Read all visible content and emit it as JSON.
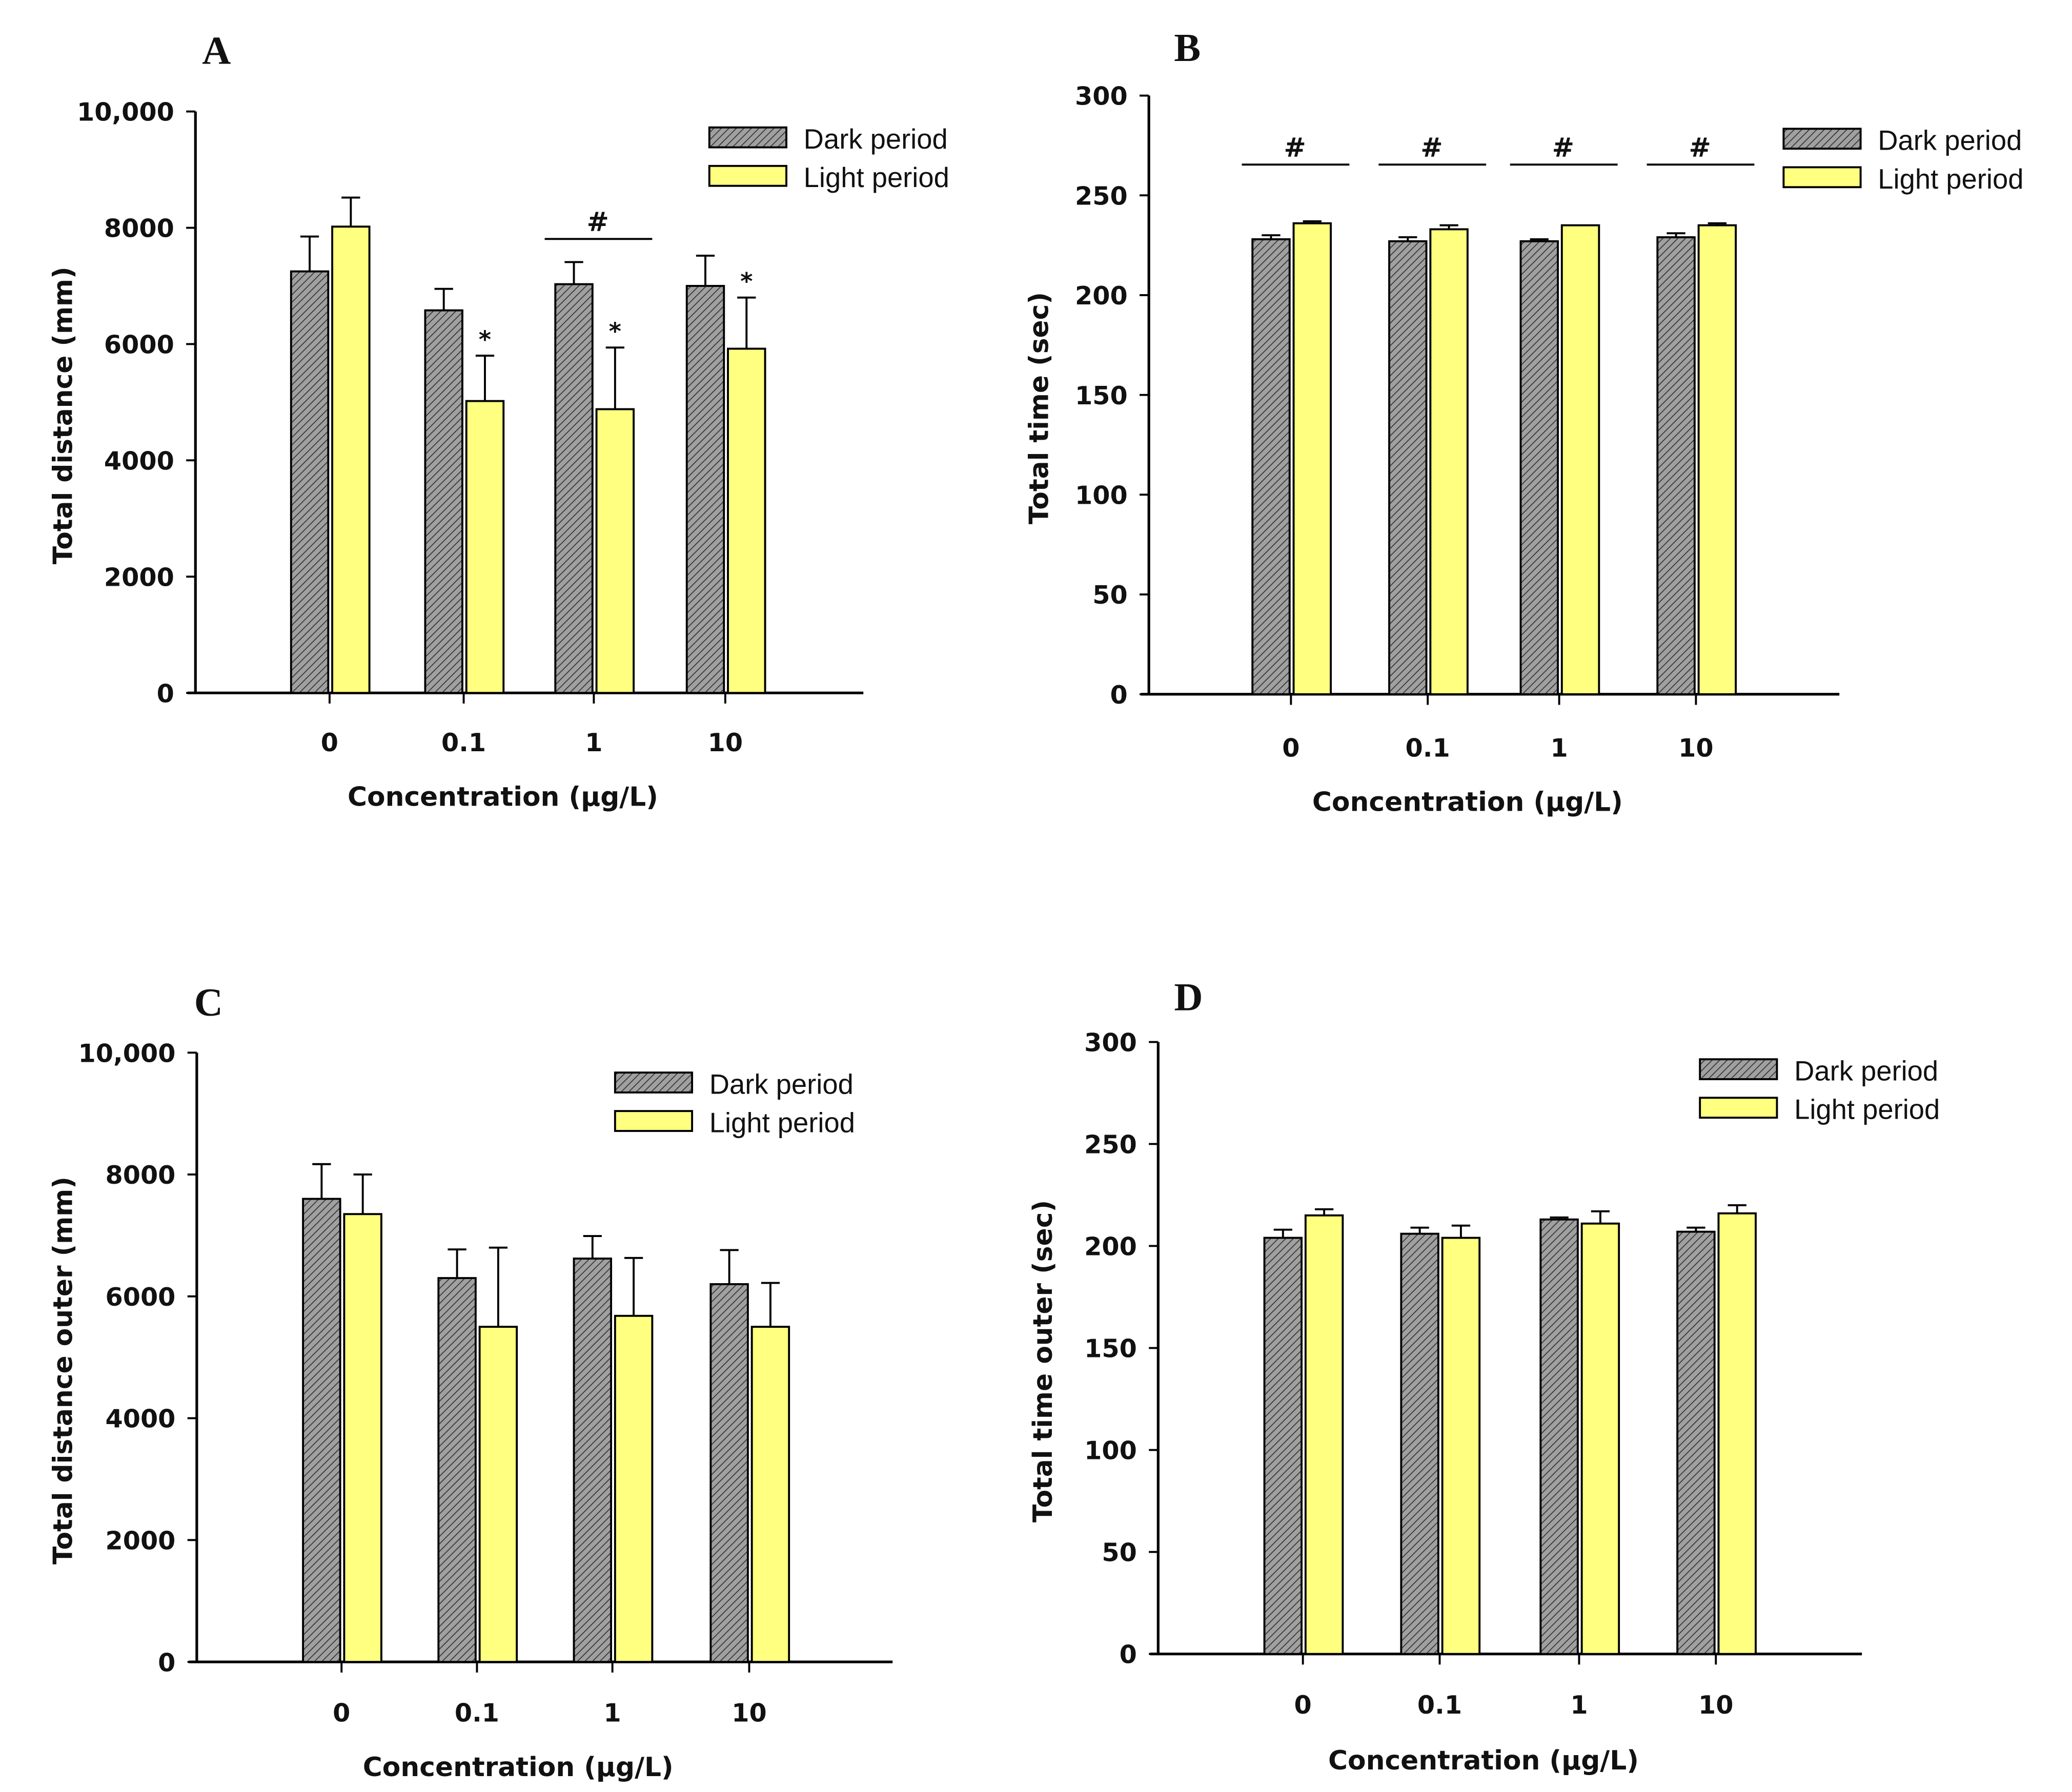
{
  "colors": {
    "dark": "#a0a0a0",
    "light": "#ffff80",
    "axis": "#000000"
  },
  "chart_data": [
    {
      "panel": "A",
      "type": "bar",
      "categories": [
        "0",
        "0.1",
        "1",
        "10"
      ],
      "xlabel": "Concentration (µg/L)",
      "ylabel": "Total distance (mm)",
      "ylim": [
        0,
        10000
      ],
      "yticks": [
        "0",
        "2000",
        "4000",
        "6000",
        "8000",
        "10,000"
      ],
      "legend": [
        "Dark period",
        "Light period"
      ],
      "legend_position": "top-right",
      "series": [
        {
          "name": "Dark period",
          "values": [
            7250,
            6580,
            7030,
            7000
          ],
          "errors": [
            600,
            370,
            380,
            520
          ]
        },
        {
          "name": "Light period",
          "values": [
            8020,
            5020,
            4880,
            5920
          ],
          "errors": [
            500,
            780,
            1060,
            880
          ]
        }
      ],
      "annotations": {
        "star_light": [
          "",
          "*",
          "*",
          "*"
        ],
        "hash": [
          "",
          "",
          "#",
          ""
        ]
      }
    },
    {
      "panel": "B",
      "type": "bar",
      "categories": [
        "0",
        "0.1",
        "1",
        "10"
      ],
      "xlabel": "Concentration (µg/L)",
      "ylabel": "Total time (sec)",
      "ylim": [
        0,
        300
      ],
      "yticks": [
        "0",
        "50",
        "100",
        "150",
        "200",
        "250",
        "300"
      ],
      "legend": [
        "Dark period",
        "Light period"
      ],
      "legend_position": "top-right",
      "series": [
        {
          "name": "Dark period",
          "values": [
            228,
            227,
            227,
            229
          ],
          "errors": [
            2,
            2,
            1,
            2
          ]
        },
        {
          "name": "Light period",
          "values": [
            236,
            233,
            235,
            235
          ],
          "errors": [
            1,
            2,
            0,
            1
          ]
        }
      ],
      "annotations": {
        "star_light": [
          "",
          "",
          "",
          ""
        ],
        "hash": [
          "#",
          "#",
          "#",
          "#"
        ]
      }
    },
    {
      "panel": "C",
      "type": "bar",
      "categories": [
        "0",
        "0.1",
        "1",
        "10"
      ],
      "xlabel": "Concentration (µg/L)",
      "ylabel": "Total distance outer (mm)",
      "ylim": [
        0,
        10000
      ],
      "yticks": [
        "0",
        "2000",
        "4000",
        "6000",
        "8000",
        "10,000"
      ],
      "legend": [
        "Dark period",
        "Light period"
      ],
      "legend_position": "top-right",
      "series": [
        {
          "name": "Dark period",
          "values": [
            7600,
            6300,
            6620,
            6200
          ],
          "errors": [
            570,
            470,
            370,
            560
          ]
        },
        {
          "name": "Light period",
          "values": [
            7350,
            5500,
            5680,
            5500
          ],
          "errors": [
            650,
            1300,
            950,
            720
          ]
        }
      ],
      "annotations": {
        "star_light": [
          "",
          "",
          "",
          ""
        ],
        "hash": [
          "",
          "",
          "",
          ""
        ]
      }
    },
    {
      "panel": "D",
      "type": "bar",
      "categories": [
        "0",
        "0.1",
        "1",
        "10"
      ],
      "xlabel": "Concentration (µg/L)",
      "ylabel": "Total time outer (sec)",
      "ylim": [
        0,
        300
      ],
      "yticks": [
        "0",
        "50",
        "100",
        "150",
        "200",
        "250",
        "300"
      ],
      "legend": [
        "Dark period",
        "Light period"
      ],
      "legend_position": "top-right",
      "series": [
        {
          "name": "Dark period",
          "values": [
            204,
            206,
            213,
            207
          ],
          "errors": [
            4,
            3,
            1,
            2
          ]
        },
        {
          "name": "Light period",
          "values": [
            215,
            204,
            211,
            216
          ],
          "errors": [
            3,
            6,
            6,
            4
          ]
        }
      ],
      "annotations": {
        "star_light": [
          "",
          "",
          "",
          ""
        ],
        "hash": [
          "",
          "",
          "",
          ""
        ]
      }
    }
  ]
}
